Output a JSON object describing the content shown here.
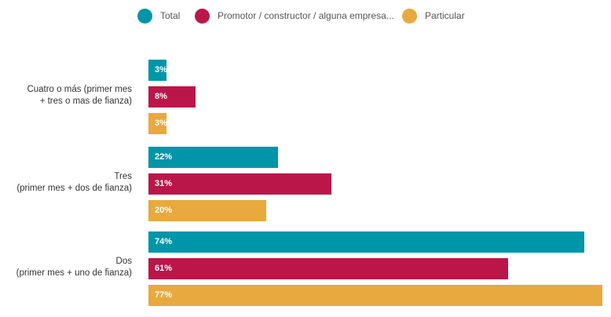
{
  "chart_data": {
    "type": "bar",
    "orientation": "horizontal",
    "categories": [
      [
        "Cuatro o más (primer mes",
        "+ tres o mas de fianza)"
      ],
      [
        "Tres",
        "(primer mes + dos de fianza)"
      ],
      [
        "Dos",
        "(primer mes + uno de fianza)"
      ]
    ],
    "series": [
      {
        "name": "Total",
        "color": "#0095A8",
        "values": [
          3,
          22,
          74
        ]
      },
      {
        "name": "Promotor / constructor / alguna empresa...",
        "color": "#BB164A",
        "values": [
          8,
          31,
          61
        ]
      },
      {
        "name": "Particular",
        "color": "#E8A93E",
        "values": [
          3,
          20,
          77
        ]
      }
    ],
    "value_suffix": "%",
    "xlim": [
      0,
      77
    ],
    "legend_position": "top-center"
  }
}
